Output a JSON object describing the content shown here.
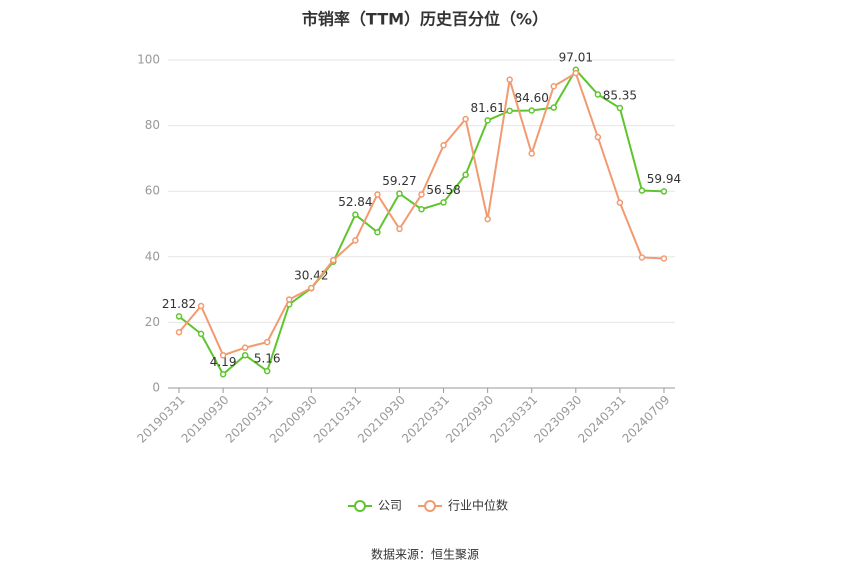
{
  "chart_data": {
    "type": "line",
    "title": "市销率（TTM）历史百分位（%）",
    "categories": [
      "20190331",
      null,
      "20190930",
      null,
      "20200331",
      null,
      "20200930",
      null,
      "20210331",
      null,
      "20210930",
      null,
      "20220331",
      null,
      "20220930",
      null,
      "20230331",
      null,
      "20230930",
      null,
      "20240331",
      null,
      "20240709"
    ],
    "series": [
      {
        "name": "公司",
        "color": "#5fc52e",
        "values": [
          21.82,
          16.5,
          4.19,
          10,
          5.16,
          25.5,
          30.42,
          38.5,
          52.84,
          47.5,
          59.27,
          54.5,
          56.58,
          65,
          81.61,
          84.5,
          84.6,
          85.5,
          97.01,
          89.5,
          85.35,
          60.2,
          59.94
        ],
        "value_labels": [
          "21.82",
          null,
          "4.19",
          null,
          "5.16",
          null,
          "30.42",
          null,
          "52.84",
          null,
          "59.27",
          null,
          "56.58",
          null,
          "81.61",
          null,
          "84.60",
          null,
          "97.01",
          null,
          "85.35",
          null,
          "59.94"
        ]
      },
      {
        "name": "行业中位数",
        "color": "#f29a70",
        "values": [
          17,
          25,
          10,
          12.3,
          14,
          27,
          30.5,
          39,
          45,
          59,
          48.5,
          59,
          74,
          82,
          51.5,
          94,
          71.5,
          92,
          96,
          76.5,
          56.5,
          39.8,
          39.5
        ]
      }
    ],
    "ylim": [
      0,
      100
    ],
    "yticks": [
      0,
      20,
      40,
      60,
      80,
      100
    ],
    "grid": true,
    "legend": "bottom",
    "source": "数据来源：恒生聚源"
  }
}
